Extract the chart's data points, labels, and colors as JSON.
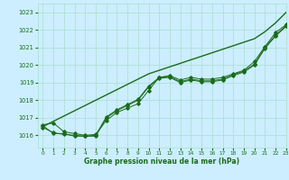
{
  "bg_color": "#cceeff",
  "grid_color": "#aaddcc",
  "line_color": "#1a6b1a",
  "label_color": "#1a6b1a",
  "xlabel": "Graphe pression niveau de la mer (hPa)",
  "ylim": [
    1015.3,
    1023.5
  ],
  "xlim": [
    -0.5,
    23
  ],
  "yticks": [
    1016,
    1017,
    1018,
    1019,
    1020,
    1021,
    1022,
    1023
  ],
  "xticks": [
    0,
    1,
    2,
    3,
    4,
    5,
    6,
    7,
    8,
    9,
    10,
    11,
    12,
    13,
    14,
    15,
    16,
    17,
    18,
    19,
    20,
    21,
    22,
    23
  ],
  "series_smooth": {
    "x": [
      0,
      1,
      2,
      3,
      4,
      5,
      6,
      7,
      8,
      9,
      10,
      11,
      12,
      13,
      14,
      15,
      16,
      17,
      18,
      19,
      20,
      21,
      22,
      23
    ],
    "y": [
      1016.5,
      1016.8,
      1017.1,
      1017.4,
      1017.7,
      1018.0,
      1018.3,
      1018.6,
      1018.9,
      1019.2,
      1019.5,
      1019.7,
      1019.9,
      1020.1,
      1020.3,
      1020.5,
      1020.7,
      1020.9,
      1021.1,
      1021.3,
      1021.5,
      1021.9,
      1022.4,
      1023.0
    ]
  },
  "series1": {
    "x": [
      0,
      1,
      2,
      3,
      4,
      5,
      6,
      7,
      8,
      9,
      10,
      11,
      12,
      13,
      14,
      15,
      16,
      17,
      18,
      19,
      20,
      21,
      22,
      23
    ],
    "y": [
      1016.6,
      1016.7,
      1016.2,
      1016.1,
      1016.0,
      1016.05,
      1016.85,
      1017.3,
      1017.55,
      1017.8,
      1018.55,
      1019.3,
      1019.4,
      1019.15,
      1019.3,
      1019.2,
      1019.2,
      1019.3,
      1019.5,
      1019.7,
      1020.2,
      1021.05,
      1021.85,
      1022.3
    ]
  },
  "series2": {
    "x": [
      0,
      1,
      2,
      3,
      4,
      5,
      6,
      7,
      8,
      9,
      10,
      11,
      12,
      13,
      14,
      15,
      16,
      17,
      18,
      19,
      20,
      21,
      22,
      23
    ],
    "y": [
      1016.45,
      1016.15,
      1016.05,
      1016.0,
      1015.95,
      1015.95,
      1017.0,
      1017.4,
      1017.7,
      1018.0,
      1018.75,
      1019.25,
      1019.3,
      1019.0,
      1019.15,
      1019.05,
      1019.05,
      1019.15,
      1019.4,
      1019.6,
      1020.0,
      1020.95,
      1021.65,
      1022.2
    ]
  },
  "series3": {
    "x": [
      0,
      1,
      2,
      3,
      4,
      5,
      6,
      7,
      8,
      9,
      10,
      11,
      12,
      13,
      14,
      15,
      16,
      17,
      18,
      19,
      20,
      21,
      22,
      23
    ],
    "y": [
      1016.55,
      1016.1,
      1016.1,
      1015.95,
      1015.95,
      1016.0,
      1017.05,
      1017.45,
      1017.75,
      1018.05,
      1018.8,
      1019.3,
      1019.35,
      1019.05,
      1019.2,
      1019.1,
      1019.1,
      1019.2,
      1019.45,
      1019.65,
      1020.05,
      1021.0,
      1021.7,
      1022.25
    ]
  }
}
